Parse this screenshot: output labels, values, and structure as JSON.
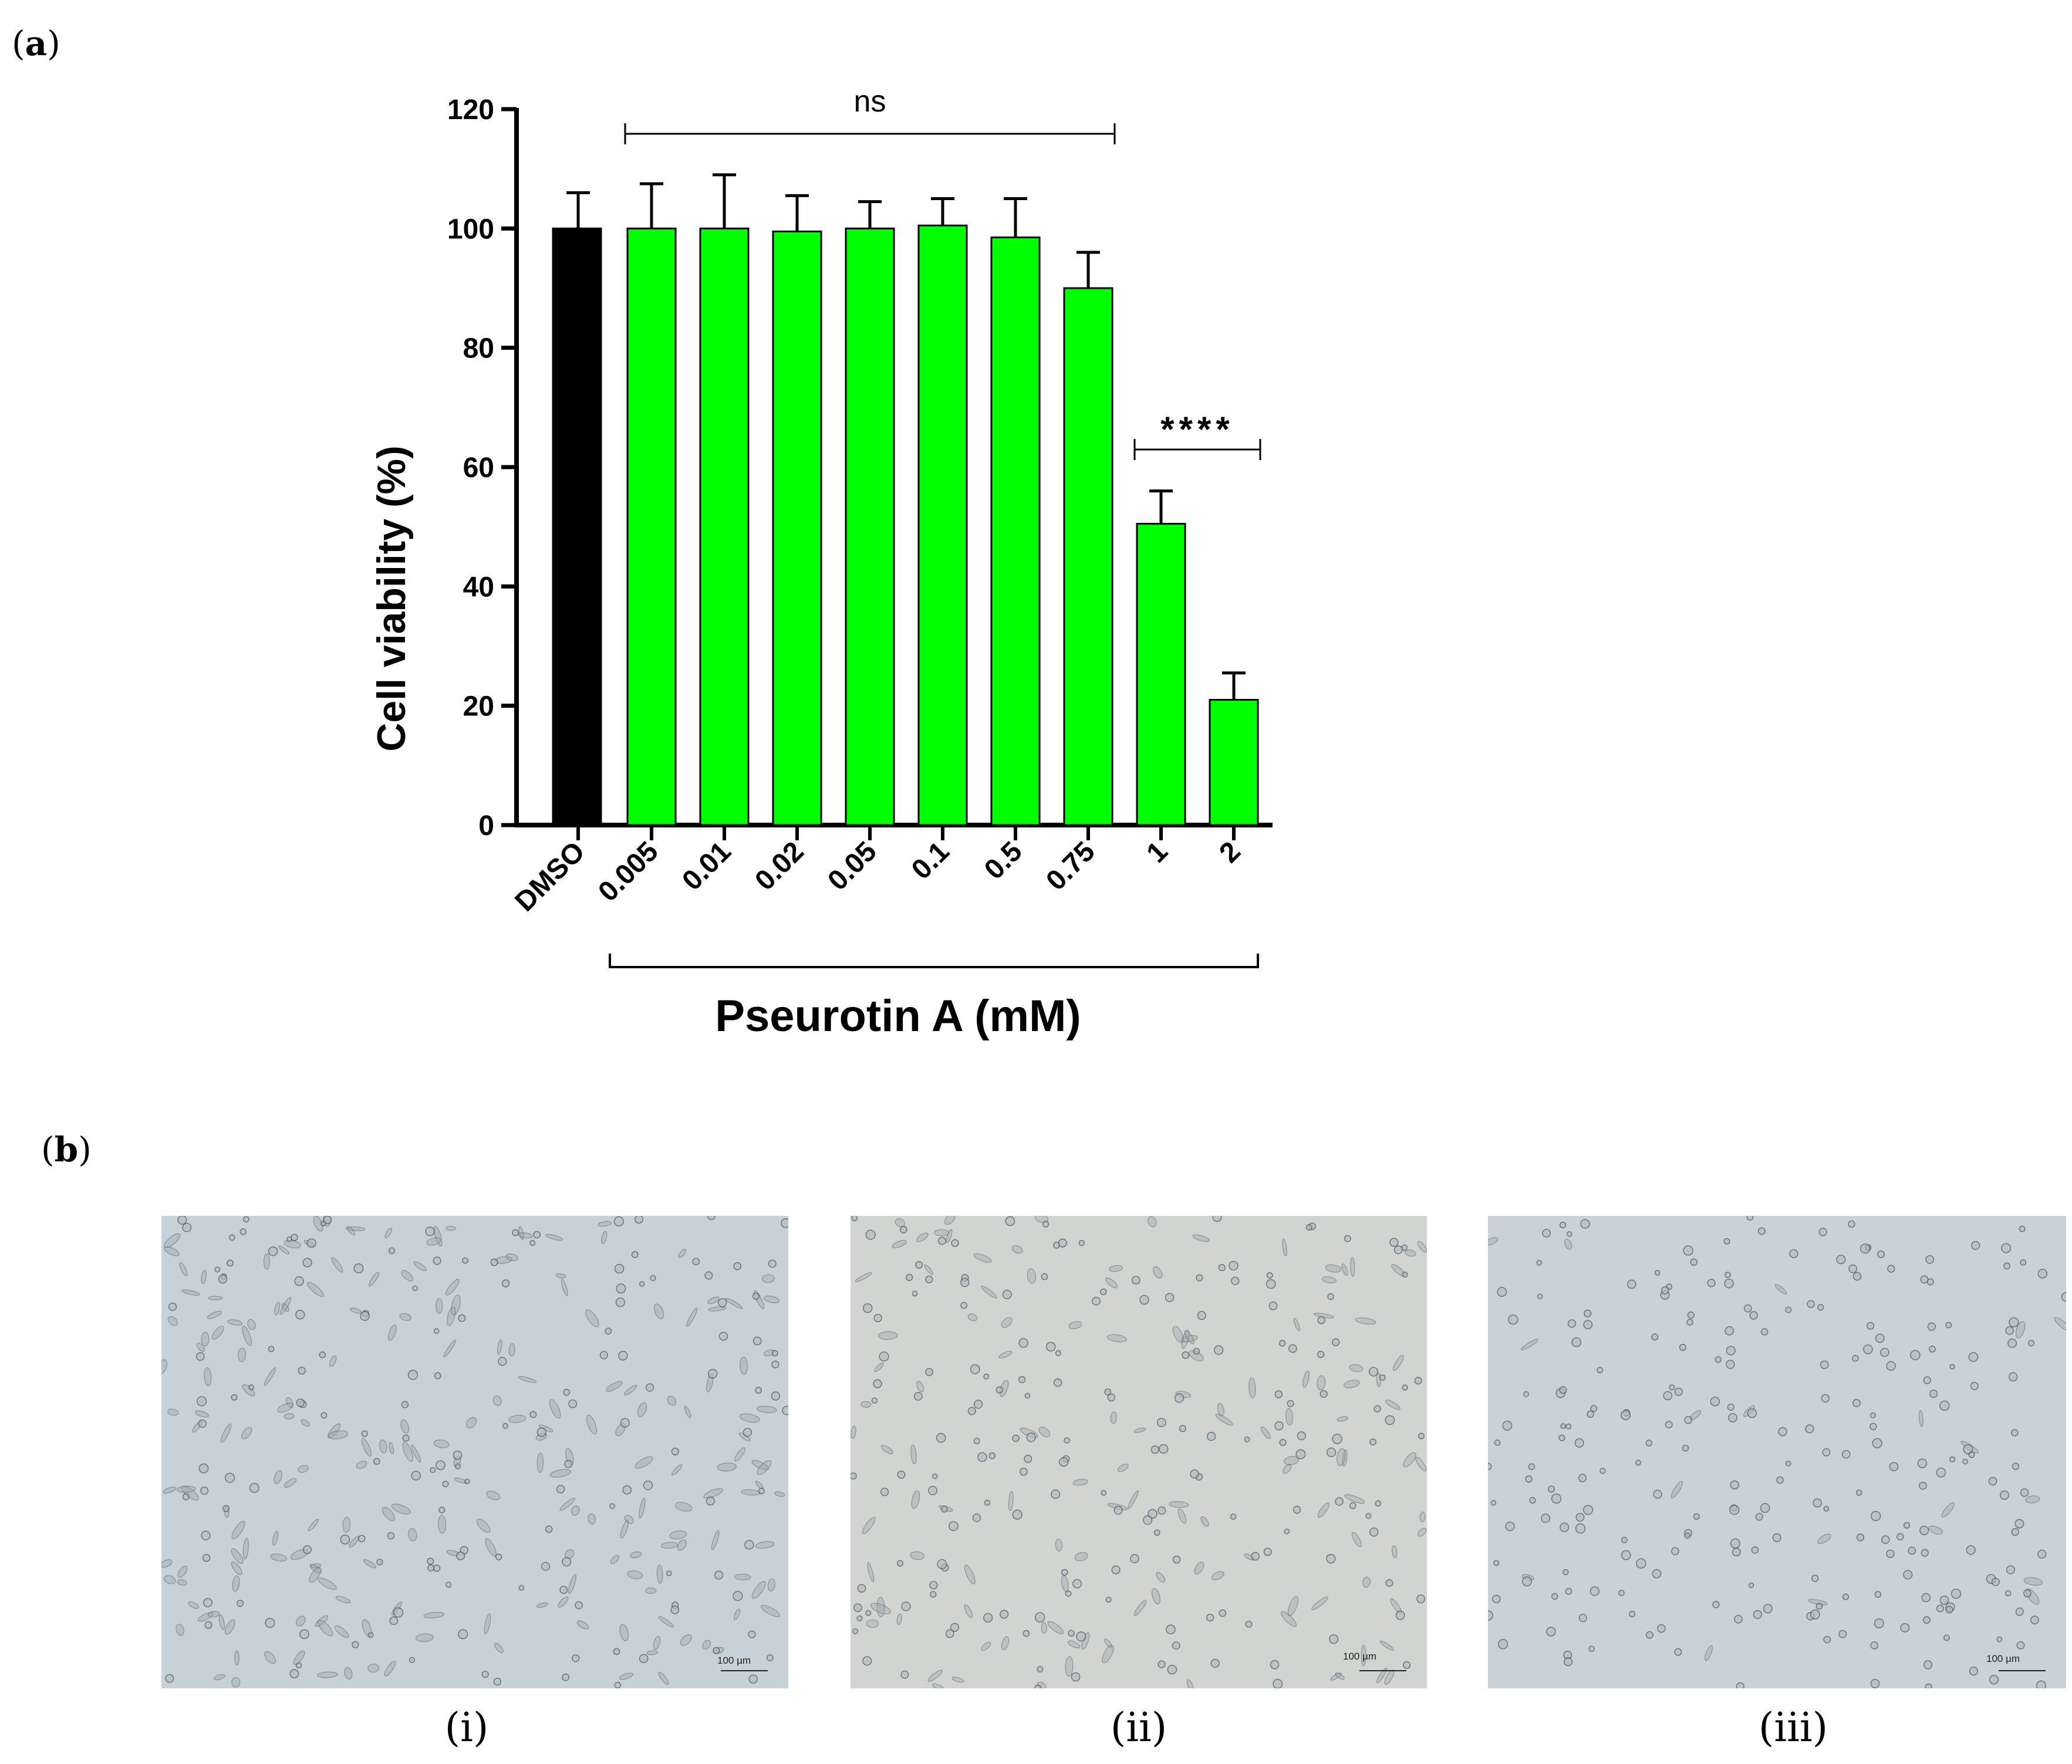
{
  "panel_labels": {
    "a": "a",
    "b": "b"
  },
  "chart_data": {
    "type": "bar",
    "xlabel": "Pseurotin A (mM)",
    "ylabel": "Cell viability (%)",
    "ylim": [
      0,
      120
    ],
    "yticks": [
      0,
      20,
      40,
      60,
      80,
      100,
      120
    ],
    "categories": [
      "DMSO",
      "0.005",
      "0.01",
      "0.02",
      "0.05",
      "0.1",
      "0.5",
      "0.75",
      "1",
      "2"
    ],
    "values": [
      100,
      100,
      100,
      99.5,
      100,
      100.5,
      98.5,
      90,
      50.5,
      21
    ],
    "errors": [
      6,
      7.5,
      9,
      6,
      4.5,
      4.5,
      6.5,
      6,
      5.5,
      4.5
    ],
    "colors": [
      "#000000",
      "#00ff00",
      "#00ff00",
      "#00ff00",
      "#00ff00",
      "#00ff00",
      "#00ff00",
      "#00ff00",
      "#00ff00",
      "#00ff00"
    ],
    "annotations": [
      {
        "text": "ns",
        "from": "0.005",
        "to": "0.75"
      },
      {
        "text": "****",
        "from": "1",
        "to": "2"
      }
    ],
    "grid": false,
    "legend": "none"
  },
  "micrographs": [
    {
      "caption": "(i)",
      "scale": "100 µm",
      "tint": "#c7d2d8"
    },
    {
      "caption": "(ii)",
      "scale": "100 µm",
      "tint": "#d2d4d2"
    },
    {
      "caption": "(iii)",
      "scale": "100 µm",
      "tint": "#c8d2d8"
    }
  ]
}
